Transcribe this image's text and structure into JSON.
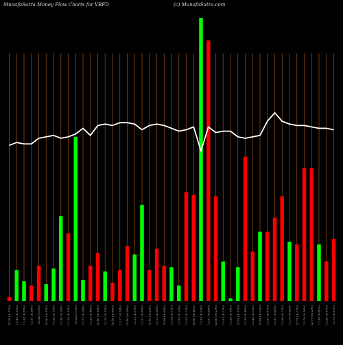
{
  "header": {
    "title": "MunafaSutra  Money Flow  Charts for VBFD",
    "watermark": "(c) MunafaSutra.com"
  },
  "chart_data": {
    "type": "bar",
    "title": "MunafaSutra  Money Flow  Charts for VBFD",
    "ylim": [
      0,
      100
    ],
    "grid": "vertical lines",
    "colors": {
      "up": "#00ff00",
      "down": "#ff0000",
      "line": "#ffffff",
      "grid": "#8b4513",
      "background": "#000000"
    },
    "categories": [
      "13.38 (-0.17%)",
      "13.45 (0.52%)",
      "13.38 (0.52%)",
      "13.31 (0.38%)",
      "13.26 (-0.3%)",
      "13.30 (-0.15%)",
      "13.32 (0.15%)",
      "13.30 (0.38%)",
      "13.25 (0.15%)",
      "13.23 (-0.3%)",
      "13.27 (0.38%)",
      "13.22 (0.46%)",
      "13.16 (-0.15%)",
      "13.18 (0.15%)",
      "13.16 (-0.08%)",
      "13.17 (0.54%)",
      "13.10 (-0.38%)",
      "13.15 (0.31%)",
      "13.11 (0.08%)",
      "13.10 (-0.23%)",
      "13.13 (0.38%)",
      "13.08 (-0.08%)",
      "13.09 (0.31%)",
      "13.05 (0.23%)",
      "13.02 (0.31%)",
      "12.98 (-0.46%)",
      "13.04 (0.23%)",
      "13.01 (0.08%)",
      "13.00 (-0.23%)",
      "13.03 (0.31%)",
      "12.99 (0.54%)",
      "12.92 (-0.15%)",
      "12.94 (0.46%)",
      "12.88 (0.31%)",
      "12.84 (-0.23%)",
      "12.87 (0.47%)",
      "12.81 (0.08%)",
      "12.80 (0.31%)",
      "12.76 (0.08%)",
      "12.75 (-0.31%)",
      "12.79 (0.16%)",
      "12.77 (-0.23%)",
      "12.80 (0.00%)",
      "12.80 (0.47%)",
      "12.74 (0.47%)"
    ],
    "series": [
      {
        "type": "bar",
        "directions": [
          "down",
          "up",
          "up",
          "down",
          "down",
          "up",
          "up",
          "up",
          "down",
          "up",
          "up",
          "down",
          "down",
          "up",
          "down",
          "down",
          "down",
          "up",
          "up",
          "down",
          "down",
          "down",
          "up",
          "up",
          "down",
          "down",
          "up",
          "down",
          "down",
          "up",
          "up",
          "up",
          "down",
          "down",
          "up",
          "down",
          "down",
          "down",
          "up",
          "down",
          "down",
          "down",
          "up",
          "down",
          "down"
        ],
        "values": [
          1.5,
          11,
          7,
          5.5,
          12.5,
          6,
          11.5,
          30,
          24,
          58,
          7.5,
          12.5,
          17,
          10.5,
          6.5,
          11,
          19.5,
          16.5,
          34,
          11,
          18.5,
          12.5,
          12,
          5.5,
          38.5,
          37.5,
          100,
          92,
          37,
          14,
          1,
          12,
          51,
          17.5,
          24.5,
          24.5,
          29.5,
          37,
          21,
          20,
          47,
          47,
          20,
          14,
          22
        ]
      },
      {
        "type": "line",
        "values": [
          55,
          56,
          55.5,
          55.5,
          57.5,
          58,
          58.5,
          57.5,
          58,
          59,
          61,
          58.5,
          62,
          62.5,
          62,
          63,
          63,
          62.5,
          60.5,
          62,
          62.5,
          62,
          61,
          60,
          60.5,
          61.5,
          53,
          61.5,
          59.5,
          60,
          60,
          58,
          57.5,
          58,
          58.5,
          63.5,
          66.5,
          63.5,
          62.5,
          62,
          62,
          61.5,
          61,
          61,
          60.5
        ]
      }
    ]
  }
}
